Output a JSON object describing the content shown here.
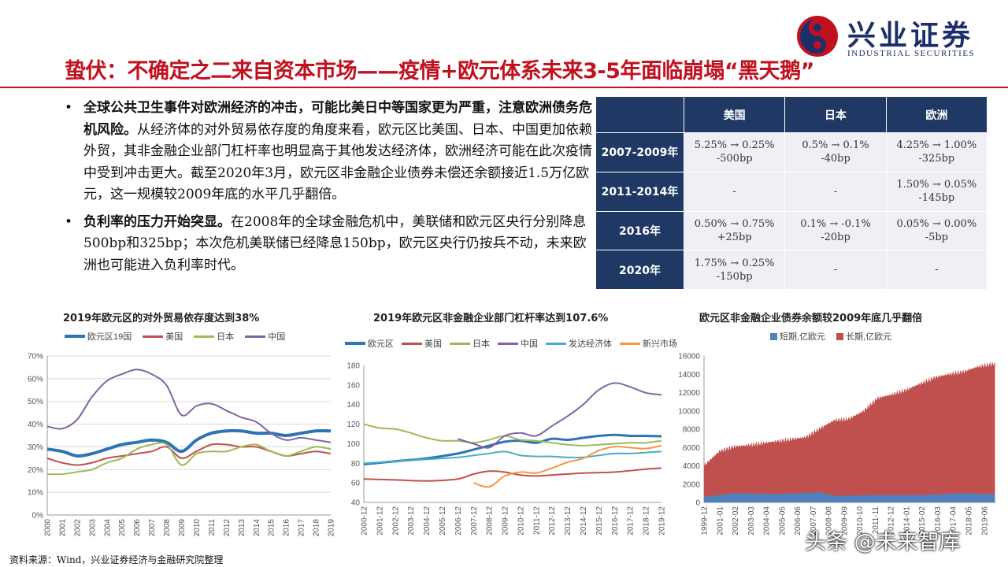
{
  "logo": {
    "name": "兴业证券",
    "en": "INDUSTRIAL SECURITIES"
  },
  "title": "蛰伏：不确定之二来自资本市场——疫情+欧元体系未来3-5年面临崩塌“黑天鹅”",
  "bullets": [
    {
      "bold": "全球公共卫生事件对欧洲经济的冲击，可能比美日中等国家更为严重，注意欧洲债务危机风险。",
      "text": "从经济体的对外贸易依存度的角度来看，欧元区比美国、日本、中国更加依赖外贸，其非金融企业部门杠杆率也明显高于其他发达经济体，欧洲经济可能在此次疫情中受到冲击更大。截至2020年3月，欧元区非金融企业债券未偿还余额接近1.5万亿欧元，这一规模较2009年底的水平几乎翻倍。"
    },
    {
      "bold": "负利率的压力开始突显。",
      "text": "在2008年的全球金融危机中，美联储和欧元区央行分别降息500bp和325bp；本次危机美联储已经降息150bp，欧元区央行仍按兵不动，未来欧洲也可能进入负利率时代。"
    }
  ],
  "table": {
    "headers": [
      "美国",
      "日本",
      "欧洲"
    ],
    "rows": [
      {
        "period": "2007-2009年",
        "cells": [
          [
            "5.25% → 0.25%",
            "-500bp"
          ],
          [
            "0.5% → 0.1%",
            "-40bp"
          ],
          [
            "4.25% → 1.00%",
            "-325bp"
          ]
        ]
      },
      {
        "period": "2011-2014年",
        "cells": [
          [
            "-",
            ""
          ],
          [
            "-",
            ""
          ],
          [
            "1.50% → 0.05%",
            "-145bp"
          ]
        ]
      },
      {
        "period": "2016年",
        "cells": [
          [
            "0.50% → 0.75%",
            "+25bp"
          ],
          [
            "0.1% → -0.1%",
            "-20bp"
          ],
          [
            "0.05% → 0.00%",
            "-5bp"
          ]
        ]
      },
      {
        "period": "2020年",
        "cells": [
          [
            "1.75% → 0.25%",
            "-150bp"
          ],
          [
            "-",
            ""
          ],
          [
            "-",
            ""
          ]
        ]
      }
    ]
  },
  "chart_data": [
    {
      "type": "line",
      "title": "2019年欧元区的对外贸易依存度达到38%",
      "x": [
        2000,
        2001,
        2002,
        2003,
        2004,
        2005,
        2006,
        2007,
        2008,
        2009,
        2010,
        2011,
        2012,
        2013,
        2014,
        2015,
        2016,
        2017,
        2018,
        2019
      ],
      "x_tick_labels": [
        "2000",
        "2001",
        "2002",
        "2003",
        "2004",
        "2005",
        "2006",
        "2007",
        "2008",
        "2009",
        "2010",
        "2011",
        "2012",
        "2013",
        "2014",
        "2015",
        "2016",
        "2017",
        "2018",
        "2019"
      ],
      "y_ticks": [
        "0%",
        "10%",
        "20%",
        "30%",
        "40%",
        "50%",
        "60%",
        "70%"
      ],
      "ylim": [
        0,
        70
      ],
      "series": [
        {
          "name": "欧元区19国",
          "color": "#2e75b6",
          "width": 4,
          "values": [
            29,
            28,
            26,
            27,
            29,
            31,
            32,
            33,
            32,
            28,
            33,
            36,
            37,
            37,
            36,
            36,
            35,
            36,
            37,
            37
          ]
        },
        {
          "name": "美国",
          "color": "#c0504d",
          "width": 2,
          "values": [
            25,
            23,
            22,
            23,
            25,
            26,
            27,
            28,
            30,
            25,
            28,
            31,
            31,
            30,
            30,
            28,
            26,
            27,
            28,
            27
          ]
        },
        {
          "name": "日本",
          "color": "#9bbb59",
          "width": 2,
          "values": [
            18,
            18,
            19,
            20,
            23,
            25,
            29,
            31,
            31,
            22,
            27,
            28,
            28,
            30,
            31,
            28,
            26,
            28,
            30,
            29
          ]
        },
        {
          "name": "中国",
          "color": "#8064a2",
          "width": 2,
          "values": [
            39,
            38,
            42,
            52,
            59,
            62,
            64,
            62,
            57,
            44,
            48,
            49,
            46,
            43,
            41,
            36,
            33,
            34,
            33,
            32
          ]
        }
      ]
    },
    {
      "type": "line",
      "title": "2019年欧元区非金融企业部门杠杆率达到107.6%",
      "x_tick_labels": [
        "2000-12",
        "2001-12",
        "2002-12",
        "2003-12",
        "2004-12",
        "2005-12",
        "2006-12",
        "2007-12",
        "2008-12",
        "2009-12",
        "2010-12",
        "2011-12",
        "2012-12",
        "2013-12",
        "2014-12",
        "2015-12",
        "2016-12",
        "2017-12",
        "2018-12",
        "2019-12"
      ],
      "y_ticks": [
        "40",
        "60",
        "80",
        "100",
        "120",
        "140",
        "160",
        "180"
      ],
      "ylim": [
        40,
        180
      ],
      "series": [
        {
          "name": "欧元区",
          "color": "#2e75b6",
          "width": 3,
          "points": [
            [
              2000,
              79
            ],
            [
              2002,
              82
            ],
            [
              2004,
              85
            ],
            [
              2006,
              90
            ],
            [
              2007,
              94
            ],
            [
              2008,
              98
            ],
            [
              2009,
              102
            ],
            [
              2010,
              103
            ],
            [
              2011,
              101
            ],
            [
              2012,
              105
            ],
            [
              2013,
              104
            ],
            [
              2014,
              106
            ],
            [
              2015,
              108
            ],
            [
              2016,
              109
            ],
            [
              2017,
              108
            ],
            [
              2018,
              108
            ],
            [
              2019,
              107.6
            ]
          ]
        },
        {
          "name": "美国",
          "color": "#c0504d",
          "width": 2,
          "points": [
            [
              2000,
              64
            ],
            [
              2002,
              63
            ],
            [
              2004,
              62
            ],
            [
              2006,
              64
            ],
            [
              2007,
              69
            ],
            [
              2008,
              72
            ],
            [
              2009,
              71
            ],
            [
              2010,
              68
            ],
            [
              2011,
              67
            ],
            [
              2012,
              68
            ],
            [
              2014,
              70
            ],
            [
              2016,
              71
            ],
            [
              2018,
              74
            ],
            [
              2019,
              75
            ]
          ]
        },
        {
          "name": "日本",
          "color": "#9bbb59",
          "width": 2,
          "points": [
            [
              2000,
              120
            ],
            [
              2001,
              116
            ],
            [
              2002,
              115
            ],
            [
              2003,
              111
            ],
            [
              2004,
              106
            ],
            [
              2005,
              103
            ],
            [
              2006,
              103
            ],
            [
              2007,
              101
            ],
            [
              2008,
              104
            ],
            [
              2009,
              108
            ],
            [
              2010,
              104
            ],
            [
              2011,
              103
            ],
            [
              2012,
              101
            ],
            [
              2013,
              99
            ],
            [
              2014,
              98
            ],
            [
              2015,
              99
            ],
            [
              2016,
              100
            ],
            [
              2017,
              101
            ],
            [
              2018,
              101
            ],
            [
              2019,
              103
            ]
          ]
        },
        {
          "name": "中国",
          "color": "#8064a2",
          "width": 2,
          "points": [
            [
              2006,
              105
            ],
            [
              2007,
              100
            ],
            [
              2008,
              96
            ],
            [
              2009,
              108
            ],
            [
              2010,
              111
            ],
            [
              2011,
              108
            ],
            [
              2012,
              118
            ],
            [
              2013,
              128
            ],
            [
              2014,
              140
            ],
            [
              2015,
              155
            ],
            [
              2016,
              162
            ],
            [
              2017,
              158
            ],
            [
              2018,
              152
            ],
            [
              2019,
              150
            ]
          ]
        },
        {
          "name": "发达经济体",
          "color": "#4bacc6",
          "width": 2,
          "points": [
            [
              2000,
              80
            ],
            [
              2002,
              82
            ],
            [
              2004,
              84
            ],
            [
              2006,
              86
            ],
            [
              2007,
              88
            ],
            [
              2008,
              90
            ],
            [
              2009,
              92
            ],
            [
              2010,
              88
            ],
            [
              2011,
              87
            ],
            [
              2012,
              87
            ],
            [
              2013,
              86
            ],
            [
              2014,
              86
            ],
            [
              2015,
              88
            ],
            [
              2016,
              90
            ],
            [
              2017,
              90
            ],
            [
              2018,
              91
            ],
            [
              2019,
              92
            ]
          ]
        },
        {
          "name": "新兴市场",
          "color": "#f79646",
          "width": 2,
          "points": [
            [
              2007,
              60
            ],
            [
              2008,
              56
            ],
            [
              2009,
              67
            ],
            [
              2010,
              71
            ],
            [
              2011,
              70
            ],
            [
              2012,
              75
            ],
            [
              2013,
              81
            ],
            [
              2014,
              85
            ],
            [
              2015,
              93
            ],
            [
              2016,
              97
            ],
            [
              2017,
              96
            ],
            [
              2018,
              95
            ],
            [
              2019,
              98
            ]
          ]
        }
      ]
    },
    {
      "type": "area",
      "title": "欧元区非金融企业债券余额较2009年底几乎翻倍",
      "x_tick_labels": [
        "1999-12",
        "2001-01",
        "2002-02",
        "2003-03",
        "2004-04",
        "2005-05",
        "2006-06",
        "2007-07",
        "2008-08",
        "2009-09",
        "2010-10",
        "2011-11",
        "2012-12",
        "2014-01",
        "2015-02",
        "2016-03",
        "2017-04",
        "2018-05",
        "2019-06"
      ],
      "y_ticks": [
        "0",
        "2000",
        "4000",
        "6000",
        "8000",
        "10000",
        "12000",
        "14000",
        "16000"
      ],
      "ylim": [
        0,
        16000
      ],
      "stacked": true,
      "series": [
        {
          "name": "短期,亿欧元",
          "color": "#4f81bd",
          "points": [
            [
              1999.9,
              600
            ],
            [
              2002,
              1000
            ],
            [
              2005,
              900
            ],
            [
              2008,
              1100
            ],
            [
              2009,
              700
            ],
            [
              2012,
              800
            ],
            [
              2015,
              800
            ],
            [
              2018,
              1000
            ],
            [
              2020.2,
              900
            ]
          ]
        },
        {
          "name": "长期,亿欧元",
          "color": "#c0504d",
          "points": [
            [
              1999.9,
              3400
            ],
            [
              2001,
              4800
            ],
            [
              2002,
              5100
            ],
            [
              2003,
              5300
            ],
            [
              2005,
              5800
            ],
            [
              2007,
              6100
            ],
            [
              2008,
              7000
            ],
            [
              2009,
              8300
            ],
            [
              2010,
              8400
            ],
            [
              2011,
              9200
            ],
            [
              2012,
              10600
            ],
            [
              2013,
              11000
            ],
            [
              2014,
              11500
            ],
            [
              2015,
              12200
            ],
            [
              2016,
              12800
            ],
            [
              2017,
              13100
            ],
            [
              2018,
              13300
            ],
            [
              2019,
              13900
            ],
            [
              2020.2,
              14300
            ]
          ]
        }
      ]
    }
  ],
  "source": "资料来源：Wind，兴业证券经济与金融研究院整理",
  "watermark": "头条 @未来智库"
}
